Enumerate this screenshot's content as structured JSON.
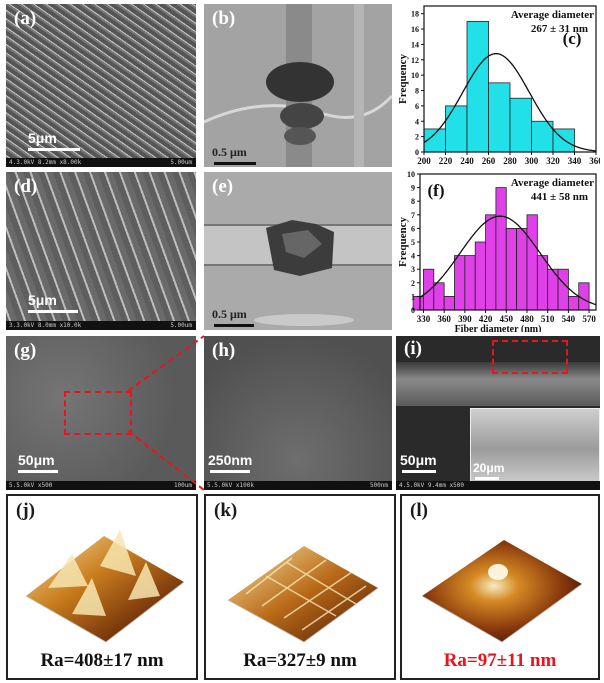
{
  "panels": {
    "a": {
      "label": "(a)",
      "scale": "5μm",
      "info": "4.3.0kV 8.2mm x8.00k",
      "info_right": "5.00um"
    },
    "b": {
      "label": "(b)",
      "scale": "0.5 μm"
    },
    "d": {
      "label": "(d)",
      "scale": "5μm",
      "info": "3.3.0kV 8.0mm x10.0k",
      "info_right": "5.00um"
    },
    "e": {
      "label": "(e)",
      "scale": "0.5 μm"
    },
    "g": {
      "label": "(g)",
      "scale": "50μm",
      "info": "5.5.0kV x500",
      "info_right": "100um"
    },
    "h": {
      "label": "(h)",
      "scale": "250nm",
      "info": "5.5.0kV x100k",
      "info_right": "500nm"
    },
    "i": {
      "label": "(i)",
      "scale": "50μm",
      "scale2": "20μm",
      "info": "4.5.0kV 9.4mm x500"
    },
    "j": {
      "label": "(j)",
      "ra": "Ra=408±17 nm"
    },
    "k": {
      "label": "(k)",
      "ra": "Ra=327±9 nm"
    },
    "l": {
      "label": "(l)",
      "ra": "Ra=97±11 nm"
    }
  },
  "colors": {
    "hist_c": "#22e0e8",
    "hist_f": "#e040e8",
    "ra_highlight": "#e8141e",
    "zoom_box": "#e8141e"
  },
  "chart_data": [
    {
      "type": "bar",
      "label": "(c)",
      "annotation": [
        "Average diameter",
        "267 ± 31 nm"
      ],
      "ylabel": "Frequency",
      "xlabel": "",
      "x_ticks": [
        "200",
        "220",
        "240",
        "260",
        "280",
        "300",
        "320",
        "340",
        "360"
      ],
      "y_ticks": [
        "0",
        "2",
        "4",
        "6",
        "8",
        "10",
        "12",
        "14",
        "16",
        "18"
      ],
      "xlim": [
        200,
        360
      ],
      "ylim": [
        0,
        19
      ],
      "bin_edges": [
        220,
        240,
        260,
        280,
        300,
        320,
        340,
        360
      ],
      "values": [
        3,
        6,
        17,
        9,
        7,
        4,
        3
      ],
      "fit": {
        "type": "gaussian",
        "mean": 267,
        "sd": 31,
        "peak": 12.8
      }
    },
    {
      "type": "bar",
      "label": "(f)",
      "annotation": [
        "Average diameter",
        "441 ± 58 nm"
      ],
      "ylabel": "Frequency",
      "xlabel": "Fiber diameter (nm)",
      "x_ticks": [
        "330",
        "360",
        "390",
        "420",
        "450",
        "480",
        "510",
        "540",
        "570"
      ],
      "y_ticks": [
        "0",
        "1",
        "2",
        "3",
        "4",
        "5",
        "6",
        "7",
        "8",
        "9",
        "10"
      ],
      "xlim": [
        325,
        580
      ],
      "ylim": [
        0,
        10
      ],
      "bin_edges": [
        330,
        345,
        360,
        375,
        390,
        405,
        420,
        435,
        450,
        465,
        480,
        495,
        510,
        525,
        540,
        555,
        570,
        585
      ],
      "values": [
        1,
        3,
        2,
        1,
        4,
        4,
        5,
        7,
        9,
        6,
        6,
        7,
        4,
        3,
        3,
        1,
        2
      ],
      "fit": {
        "type": "gaussian",
        "mean": 441,
        "sd": 58,
        "peak": 6.9
      }
    }
  ]
}
